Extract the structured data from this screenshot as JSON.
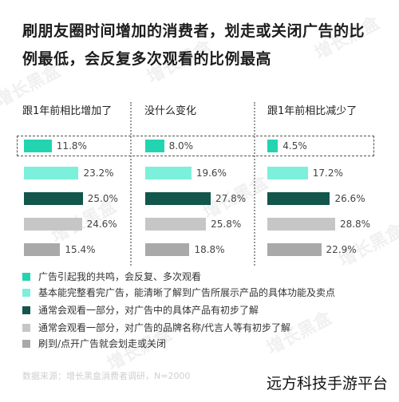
{
  "title_line1": "刷朋友圈时间增加的消费者，划走或关闭广告的比",
  "title_line2": "例最低，会反复多次观看的比例最高",
  "chart_data": {
    "type": "bar",
    "panels": [
      "跟1年前相比增加了",
      "没什么变化",
      "跟1年前相比减少了"
    ],
    "series": [
      {
        "name": "广告引起我的共鸣，会反复、多次观看",
        "color": "#22d4b0",
        "values": [
          11.8,
          8.0,
          4.5
        ]
      },
      {
        "name": "基本能完整看完广告，能清晰了解到广告所展示产品的具体功能及卖点",
        "color": "#7cf0da",
        "values": [
          23.2,
          19.6,
          17.2
        ]
      },
      {
        "name": "通常会观看一部分，对广告中的具体产品有初步了解",
        "color": "#13564c",
        "values": [
          25.0,
          27.8,
          26.6
        ]
      },
      {
        "name": "通常会观看一部分，对广告的品牌名称/代言人等有初步了解",
        "color": "#c6c6c6",
        "values": [
          24.6,
          25.8,
          28.8
        ]
      },
      {
        "name": "刷到/点开广告就会划走或关闭",
        "color": "#a9a9a9",
        "values": [
          15.4,
          18.8,
          22.9
        ]
      }
    ],
    "value_labels": [
      [
        "11.8%",
        "8.0%",
        "4.5%"
      ],
      [
        "23.2%",
        "19.6%",
        "17.2%"
      ],
      [
        "25.0%",
        "27.8%",
        "26.6%"
      ],
      [
        "24.6%",
        "25.8%",
        "28.8%"
      ],
      [
        "15.4%",
        "18.8%",
        "22.9%"
      ]
    ],
    "highlight_row": 0
  },
  "source": "数据来源：增长黑盒消费者调研，N=2000",
  "brand": "远方科技手游平台",
  "watermark": "增长黑盒"
}
